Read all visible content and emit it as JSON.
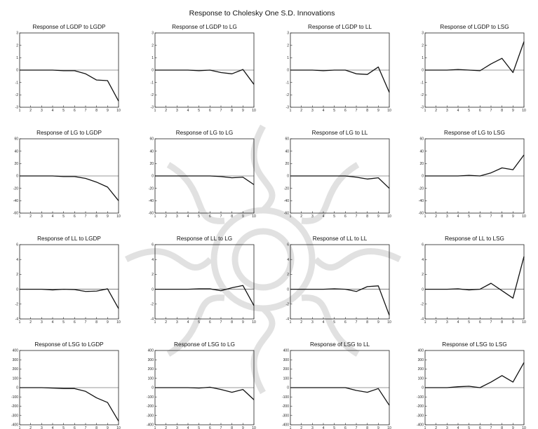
{
  "title": "Response to Cholesky One S.D. Innovations",
  "chart_data": [
    {
      "type": "line",
      "title": "Response of LGDP to LGDP",
      "x": [
        1,
        2,
        3,
        4,
        5,
        6,
        7,
        8,
        9,
        10
      ],
      "values": [
        0.0,
        0.0,
        0.0,
        0.0,
        -0.05,
        -0.05,
        -0.3,
        -0.8,
        -0.85,
        -2.5
      ],
      "ylim": [
        -3,
        3
      ],
      "yticks": [
        -3,
        -2,
        -1,
        0,
        1,
        2,
        3
      ]
    },
    {
      "type": "line",
      "title": "Response of LGDP to LG",
      "x": [
        1,
        2,
        3,
        4,
        5,
        6,
        7,
        8,
        9,
        10
      ],
      "values": [
        0.0,
        0.0,
        0.0,
        0.0,
        -0.05,
        0.0,
        -0.2,
        -0.3,
        0.05,
        -1.15
      ],
      "ylim": [
        -3,
        3
      ],
      "yticks": [
        -3,
        -2,
        -1,
        0,
        1,
        2,
        3
      ]
    },
    {
      "type": "line",
      "title": "Response of LGDP to LL",
      "x": [
        1,
        2,
        3,
        4,
        5,
        6,
        7,
        8,
        9,
        10
      ],
      "values": [
        0.0,
        0.0,
        0.0,
        -0.05,
        0.0,
        0.0,
        -0.3,
        -0.35,
        0.25,
        -1.8
      ],
      "ylim": [
        -3,
        3
      ],
      "yticks": [
        -3,
        -2,
        -1,
        0,
        1,
        2,
        3
      ]
    },
    {
      "type": "line",
      "title": "Response of LGDP to LSG",
      "x": [
        1,
        2,
        3,
        4,
        5,
        6,
        7,
        8,
        9,
        10
      ],
      "values": [
        0.0,
        0.0,
        0.0,
        0.05,
        0.0,
        -0.05,
        0.5,
        0.95,
        -0.2,
        2.3
      ],
      "ylim": [
        -3,
        3
      ],
      "yticks": [
        -3,
        -2,
        -1,
        0,
        1,
        2,
        3
      ]
    },
    {
      "type": "line",
      "title": "Response of LG to LGDP",
      "x": [
        1,
        2,
        3,
        4,
        5,
        6,
        7,
        8,
        9,
        10
      ],
      "values": [
        0,
        0,
        0,
        0,
        -1,
        -1,
        -4,
        -10,
        -18,
        -40
      ],
      "ylim": [
        -60,
        60
      ],
      "yticks": [
        -60,
        -40,
        -20,
        0,
        20,
        40,
        60
      ]
    },
    {
      "type": "line",
      "title": "Response of LG to LG",
      "x": [
        1,
        2,
        3,
        4,
        5,
        6,
        7,
        8,
        9,
        10
      ],
      "values": [
        0,
        0,
        0,
        0,
        0,
        0,
        -1,
        -3,
        -2,
        -14
      ],
      "ylim": [
        -60,
        60
      ],
      "yticks": [
        -60,
        -40,
        -20,
        0,
        20,
        40,
        60
      ]
    },
    {
      "type": "line",
      "title": "Response of LG to LL",
      "x": [
        1,
        2,
        3,
        4,
        5,
        6,
        7,
        8,
        9,
        10
      ],
      "values": [
        0,
        0,
        0,
        0,
        0,
        0,
        -2,
        -5,
        -3,
        -20
      ],
      "ylim": [
        -60,
        60
      ],
      "yticks": [
        -60,
        -40,
        -20,
        0,
        20,
        40,
        60
      ]
    },
    {
      "type": "line",
      "title": "Response of LG to LSG",
      "x": [
        1,
        2,
        3,
        4,
        5,
        6,
        7,
        8,
        9,
        10
      ],
      "values": [
        0,
        0,
        0,
        0,
        1,
        0,
        5,
        13,
        10,
        34
      ],
      "ylim": [
        -60,
        60
      ],
      "yticks": [
        -60,
        -40,
        -20,
        0,
        20,
        40,
        60
      ]
    },
    {
      "type": "line",
      "title": "Response of LL to LGDP",
      "x": [
        1,
        2,
        3,
        4,
        5,
        6,
        7,
        8,
        9,
        10
      ],
      "values": [
        0.0,
        0.0,
        0.0,
        -0.1,
        0.0,
        -0.05,
        -0.3,
        -0.25,
        0.05,
        -2.6
      ],
      "ylim": [
        -4,
        6
      ],
      "yticks": [
        -4,
        -2,
        0,
        2,
        4,
        6
      ]
    },
    {
      "type": "line",
      "title": "Response of LL to LG",
      "x": [
        1,
        2,
        3,
        4,
        5,
        6,
        7,
        8,
        9,
        10
      ],
      "values": [
        0.0,
        0.0,
        0.0,
        0.0,
        0.05,
        0.05,
        -0.2,
        0.2,
        0.5,
        -2.2
      ],
      "ylim": [
        -4,
        6
      ],
      "yticks": [
        -4,
        -2,
        0,
        2,
        4,
        6
      ]
    },
    {
      "type": "line",
      "title": "Response of LL to LL",
      "x": [
        1,
        2,
        3,
        4,
        5,
        6,
        7,
        8,
        9,
        10
      ],
      "values": [
        0.0,
        0.0,
        0.0,
        0.0,
        0.05,
        0.0,
        -0.3,
        0.35,
        0.45,
        -3.5
      ],
      "ylim": [
        -4,
        6
      ],
      "yticks": [
        -4,
        -2,
        0,
        2,
        4,
        6
      ]
    },
    {
      "type": "line",
      "title": "Response of LL to LSG",
      "x": [
        1,
        2,
        3,
        4,
        5,
        6,
        7,
        8,
        9,
        10
      ],
      "values": [
        0.0,
        0.0,
        0.0,
        0.05,
        -0.1,
        0.0,
        0.8,
        -0.2,
        -1.2,
        4.4
      ],
      "ylim": [
        -4,
        6
      ],
      "yticks": [
        -4,
        -2,
        0,
        2,
        4,
        6
      ]
    },
    {
      "type": "line",
      "title": "Response of LSG to LGDP",
      "x": [
        1,
        2,
        3,
        4,
        5,
        6,
        7,
        8,
        9,
        10
      ],
      "values": [
        0,
        0,
        0,
        -5,
        -10,
        -10,
        -40,
        -110,
        -160,
        -360
      ],
      "ylim": [
        -400,
        400
      ],
      "yticks": [
        -400,
        -300,
        -200,
        -100,
        0,
        100,
        200,
        300,
        400
      ]
    },
    {
      "type": "line",
      "title": "Response of LSG to LG",
      "x": [
        1,
        2,
        3,
        4,
        5,
        6,
        7,
        8,
        9,
        10
      ],
      "values": [
        0,
        0,
        0,
        0,
        -5,
        5,
        -20,
        -50,
        -20,
        -130
      ],
      "ylim": [
        -400,
        400
      ],
      "yticks": [
        -400,
        -300,
        -200,
        -100,
        0,
        100,
        200,
        300,
        400
      ]
    },
    {
      "type": "line",
      "title": "Response of LSG to LL",
      "x": [
        1,
        2,
        3,
        4,
        5,
        6,
        7,
        8,
        9,
        10
      ],
      "values": [
        0,
        0,
        0,
        0,
        0,
        0,
        -30,
        -50,
        -10,
        -190
      ],
      "ylim": [
        -400,
        400
      ],
      "yticks": [
        -400,
        -300,
        -200,
        -100,
        0,
        100,
        200,
        300,
        400
      ]
    },
    {
      "type": "line",
      "title": "Response of LSG to LSG",
      "x": [
        1,
        2,
        3,
        4,
        5,
        6,
        7,
        8,
        9,
        10
      ],
      "values": [
        0,
        0,
        0,
        10,
        15,
        0,
        60,
        130,
        60,
        270
      ],
      "ylim": [
        -400,
        400
      ],
      "yticks": [
        -400,
        -300,
        -200,
        -100,
        0,
        100,
        200,
        300,
        400
      ]
    }
  ]
}
